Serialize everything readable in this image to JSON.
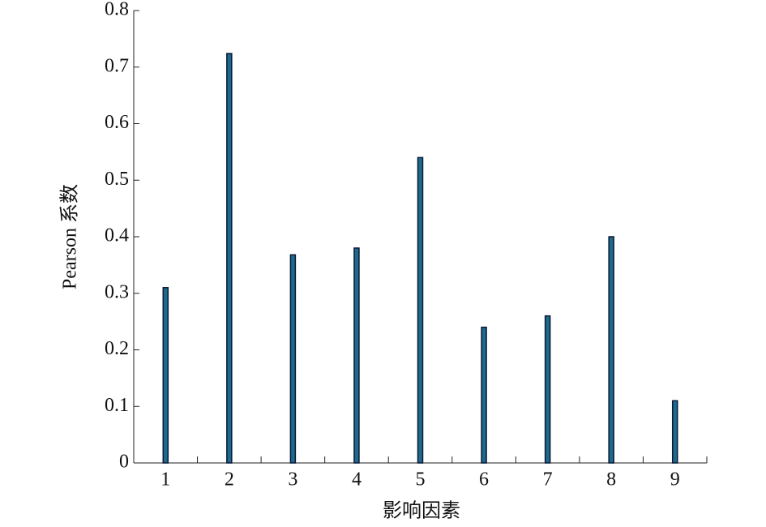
{
  "chart_data": {
    "type": "bar",
    "xlabel": "影响因素",
    "ylabel": "Pearson 系数",
    "categories": [
      "1",
      "2",
      "3",
      "4",
      "5",
      "6",
      "7",
      "8",
      "9"
    ],
    "values": [
      0.31,
      0.724,
      0.368,
      0.38,
      0.54,
      0.24,
      0.26,
      0.4,
      0.11
    ],
    "color": "#1d6a8a",
    "edge_color": "#0b1838",
    "ylim": [
      0,
      0.8
    ],
    "yticks": [
      0,
      0.1,
      0.2,
      0.3,
      0.4,
      0.5,
      0.6,
      0.7,
      0.8
    ],
    "grid": false
  }
}
